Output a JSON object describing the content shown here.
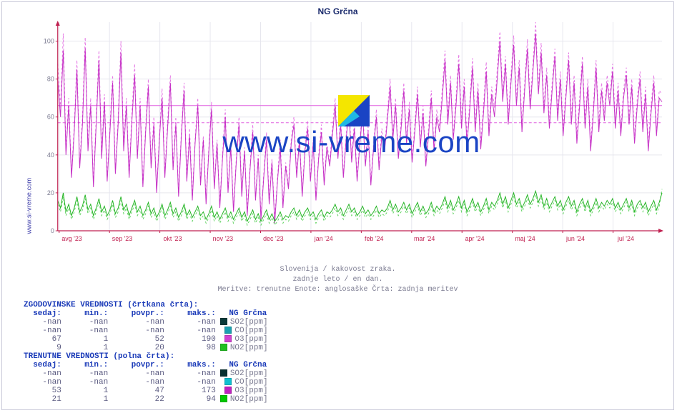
{
  "title": "NG Grčna",
  "site_label": "www.si-vreme.com",
  "watermark_text": "www.si-vreme.com",
  "captions": [
    "Slovenija / kakovost zraka.",
    "zadnje leto / en dan.",
    "Meritve: trenutne  Enote: anglosaške  Črta: zadnja meritev"
  ],
  "chart": {
    "type": "line",
    "ylim": [
      0,
      110
    ],
    "ytick_step": 20,
    "y_ticks": [
      0,
      20,
      40,
      60,
      80,
      100
    ],
    "x_ticks": [
      "avg '23",
      "sep '23",
      "okt '23",
      "nov '23",
      "dec '23",
      "jan '24",
      "feb '24",
      "mar '24",
      "apr '24",
      "maj '24",
      "jun '24",
      "jul '24"
    ],
    "grid_color": "#e6e6ee",
    "axis_color": "#c02050",
    "background_color": "#ffffff",
    "ref_lines": [
      {
        "y": 57,
        "color": "#e060e0",
        "dash": "4 3",
        "width": 1
      },
      {
        "y": 66,
        "color": "#e060e0",
        "dash": "none",
        "width": 1
      }
    ],
    "series": [
      {
        "name": "O3_hist",
        "color": "#e060e0",
        "dash": "3 3",
        "width": 1,
        "opacity": 0.85,
        "data": [
          88,
          65,
          104,
          42,
          70,
          30,
          55,
          90,
          35,
          60,
          102,
          45,
          70,
          25,
          60,
          95,
          40,
          72,
          28,
          55,
          82,
          32,
          60,
          100,
          45,
          70,
          30,
          62,
          88,
          40,
          70,
          25,
          55,
          80,
          35,
          60,
          22,
          50,
          75,
          30,
          58,
          82,
          34,
          60,
          20,
          52,
          78,
          28,
          54,
          18,
          48,
          70,
          26,
          50,
          16,
          44,
          68,
          24,
          48,
          14,
          40,
          64,
          22,
          46,
          12,
          38,
          60,
          20,
          44,
          10,
          34,
          56,
          18,
          40,
          8,
          30,
          52,
          16,
          38,
          6,
          28,
          48,
          14,
          36,
          24,
          48,
          60,
          30,
          50,
          20,
          44,
          58,
          28,
          48,
          18,
          40,
          56,
          26,
          46,
          36,
          54,
          70,
          40,
          60,
          30,
          50,
          68,
          38,
          58,
          28,
          48,
          66,
          36,
          56,
          26,
          46,
          64,
          34,
          54,
          44,
          62,
          80,
          50,
          70,
          40,
          58,
          78,
          48,
          68,
          38,
          56,
          76,
          46,
          66,
          36,
          54,
          74,
          44,
          64,
          55,
          75,
          95,
          60,
          82,
          50,
          70,
          93,
          58,
          80,
          48,
          68,
          91,
          56,
          78,
          46,
          66,
          89,
          54,
          76,
          65,
          85,
          105,
          72,
          92,
          60,
          82,
          103,
          70,
          90,
          56,
          78,
          101,
          68,
          88,
          110,
          76,
          99,
          66,
          86,
          58,
          78,
          96,
          62,
          84,
          54,
          74,
          94,
          60,
          82,
          50,
          70,
          92,
          58,
          80,
          46,
          66,
          90,
          56,
          78,
          62,
          82,
          70,
          88,
          58,
          78,
          54,
          74,
          86,
          60,
          80,
          50,
          70,
          84,
          56,
          76,
          46,
          66,
          82,
          54,
          74,
          72
        ]
      },
      {
        "name": "O3_cur",
        "color": "#c020c0",
        "dash": "none",
        "width": 1,
        "opacity": 0.9,
        "data": [
          80,
          60,
          95,
          40,
          66,
          28,
          52,
          85,
          33,
          56,
          96,
          42,
          66,
          23,
          56,
          90,
          38,
          68,
          26,
          52,
          78,
          30,
          56,
          94,
          42,
          66,
          28,
          58,
          82,
          38,
          66,
          23,
          52,
          76,
          33,
          56,
          20,
          48,
          70,
          28,
          54,
          78,
          32,
          56,
          18,
          50,
          74,
          26,
          50,
          16,
          46,
          66,
          24,
          48,
          14,
          42,
          64,
          22,
          46,
          12,
          38,
          60,
          20,
          44,
          10,
          36,
          56,
          18,
          42,
          8,
          32,
          52,
          16,
          38,
          6,
          28,
          48,
          14,
          36,
          4,
          26,
          44,
          12,
          34,
          22,
          46,
          56,
          28,
          48,
          18,
          42,
          54,
          26,
          46,
          16,
          38,
          52,
          24,
          44,
          34,
          50,
          66,
          38,
          56,
          28,
          48,
          64,
          36,
          54,
          26,
          46,
          62,
          34,
          52,
          24,
          44,
          60,
          32,
          50,
          42,
          58,
          76,
          48,
          66,
          38,
          54,
          74,
          46,
          64,
          36,
          52,
          72,
          44,
          62,
          34,
          50,
          70,
          42,
          60,
          52,
          70,
          90,
          56,
          78,
          48,
          66,
          88,
          54,
          76,
          45,
          64,
          86,
          52,
          74,
          43,
          62,
          84,
          50,
          72,
          60,
          80,
          100,
          68,
          88,
          56,
          78,
          98,
          66,
          86,
          52,
          74,
          96,
          64,
          84,
          104,
          72,
          94,
          62,
          82,
          54,
          74,
          92,
          58,
          80,
          50,
          70,
          90,
          56,
          78,
          46,
          66,
          88,
          54,
          76,
          42,
          62,
          86,
          52,
          74,
          58,
          78,
          66,
          84,
          54,
          74,
          50,
          70,
          82,
          56,
          76,
          46,
          66,
          80,
          52,
          72,
          42,
          62,
          78,
          50,
          70,
          68
        ]
      },
      {
        "name": "NO2_hist",
        "color": "#20c020",
        "dash": "3 3",
        "width": 1,
        "opacity": 0.7,
        "data": [
          14,
          10,
          18,
          8,
          12,
          6,
          10,
          16,
          8,
          11,
          17,
          9,
          12,
          6,
          10,
          15,
          8,
          11,
          6,
          9,
          14,
          7,
          10,
          16,
          9,
          12,
          6,
          10,
          14,
          8,
          11,
          6,
          9,
          13,
          7,
          10,
          5,
          8,
          12,
          6,
          9,
          13,
          7,
          10,
          5,
          8,
          12,
          6,
          9,
          5,
          8,
          11,
          6,
          8,
          4,
          7,
          11,
          5,
          8,
          4,
          7,
          10,
          5,
          8,
          4,
          7,
          10,
          5,
          8,
          3,
          6,
          9,
          4,
          7,
          3,
          6,
          9,
          4,
          7,
          3,
          5,
          8,
          4,
          6,
          5,
          8,
          10,
          6,
          9,
          5,
          8,
          10,
          6,
          8,
          4,
          7,
          9,
          5,
          8,
          7,
          9,
          12,
          8,
          10,
          6,
          9,
          12,
          8,
          10,
          6,
          8,
          11,
          7,
          9,
          6,
          8,
          11,
          7,
          9,
          8,
          10,
          14,
          9,
          12,
          8,
          10,
          13,
          9,
          12,
          7,
          10,
          13,
          8,
          11,
          7,
          9,
          13,
          8,
          11,
          9,
          12,
          16,
          10,
          14,
          9,
          12,
          16,
          10,
          14,
          8,
          11,
          15,
          10,
          13,
          8,
          11,
          15,
          9,
          13,
          11,
          14,
          18,
          12,
          16,
          10,
          14,
          18,
          12,
          15,
          10,
          13,
          17,
          12,
          15,
          19,
          13,
          17,
          11,
          15,
          10,
          13,
          16,
          11,
          14,
          9,
          13,
          16,
          11,
          14,
          8,
          12,
          15,
          10,
          14,
          8,
          11,
          15,
          10,
          13,
          11,
          14,
          12,
          15,
          10,
          13,
          9,
          12,
          15,
          10,
          14,
          8,
          12,
          14,
          10,
          13,
          8,
          11,
          14,
          9,
          13,
          22
        ]
      },
      {
        "name": "NO2_cur",
        "color": "#00a800",
        "dash": "none",
        "width": 1,
        "opacity": 0.85,
        "data": [
          16,
          12,
          20,
          10,
          14,
          8,
          12,
          18,
          10,
          13,
          19,
          11,
          14,
          8,
          12,
          17,
          10,
          13,
          8,
          11,
          16,
          9,
          12,
          18,
          11,
          14,
          8,
          12,
          16,
          10,
          13,
          8,
          11,
          15,
          9,
          12,
          7,
          10,
          14,
          8,
          11,
          15,
          9,
          12,
          7,
          10,
          14,
          8,
          11,
          7,
          10,
          13,
          8,
          10,
          6,
          9,
          13,
          7,
          10,
          6,
          9,
          12,
          7,
          10,
          6,
          9,
          12,
          7,
          10,
          5,
          8,
          11,
          6,
          9,
          5,
          8,
          11,
          6,
          9,
          5,
          7,
          10,
          6,
          8,
          7,
          10,
          12,
          8,
          11,
          7,
          10,
          12,
          8,
          10,
          6,
          9,
          11,
          7,
          10,
          9,
          11,
          14,
          10,
          12,
          8,
          11,
          14,
          10,
          12,
          8,
          10,
          13,
          9,
          11,
          8,
          10,
          13,
          9,
          11,
          10,
          12,
          16,
          11,
          14,
          10,
          12,
          15,
          11,
          14,
          9,
          12,
          15,
          10,
          13,
          9,
          11,
          15,
          10,
          13,
          11,
          14,
          18,
          12,
          16,
          11,
          14,
          18,
          12,
          16,
          10,
          13,
          17,
          12,
          15,
          10,
          13,
          17,
          11,
          15,
          13,
          16,
          20,
          14,
          18,
          12,
          16,
          20,
          14,
          17,
          12,
          15,
          19,
          14,
          17,
          21,
          15,
          19,
          13,
          17,
          12,
          15,
          18,
          13,
          16,
          11,
          15,
          18,
          13,
          16,
          10,
          14,
          17,
          12,
          16,
          10,
          13,
          17,
          12,
          15,
          13,
          16,
          14,
          17,
          12,
          15,
          11,
          14,
          17,
          12,
          16,
          10,
          14,
          16,
          12,
          15,
          10,
          13,
          16,
          11,
          15,
          20
        ]
      }
    ]
  },
  "tables": {
    "location": "NG Grčna",
    "col_labels": [
      "sedaj:",
      "min.:",
      "povpr.:",
      "maks.:"
    ],
    "col_widths_ch": [
      8,
      9,
      11,
      10
    ],
    "historical": {
      "heading": "ZGODOVINSKE VREDNOSTI (črtkana črta):",
      "rows": [
        {
          "vals": [
            "-nan",
            "-nan",
            "-nan",
            "-nan"
          ],
          "series": "SO2[ppm]",
          "swatch": "#0a3a3a"
        },
        {
          "vals": [
            "-nan",
            "-nan",
            "-nan",
            "-nan"
          ],
          "series": "CO[ppm]",
          "swatch": "#1aa0b0"
        },
        {
          "vals": [
            "67",
            "1",
            "52",
            "190"
          ],
          "series": "O3[ppm]",
          "swatch": "#d040d0"
        },
        {
          "vals": [
            "9",
            "1",
            "20",
            "98"
          ],
          "series": "NO2[ppm]",
          "swatch": "#20c020"
        }
      ]
    },
    "current": {
      "heading": "TRENUTNE VREDNOSTI (polna črta):",
      "rows": [
        {
          "vals": [
            "-nan",
            "-nan",
            "-nan",
            "-nan"
          ],
          "series": "SO2[ppm]",
          "swatch": "#083030"
        },
        {
          "vals": [
            "-nan",
            "-nan",
            "-nan",
            "-nan"
          ],
          "series": "CO[ppm]",
          "swatch": "#10c0d0"
        },
        {
          "vals": [
            "53",
            "1",
            "47",
            "173"
          ],
          "series": "O3[ppm]",
          "swatch": "#c020c0"
        },
        {
          "vals": [
            "21",
            "1",
            "22",
            "94"
          ],
          "series": "NO2[ppm]",
          "swatch": "#00c800"
        }
      ]
    }
  }
}
